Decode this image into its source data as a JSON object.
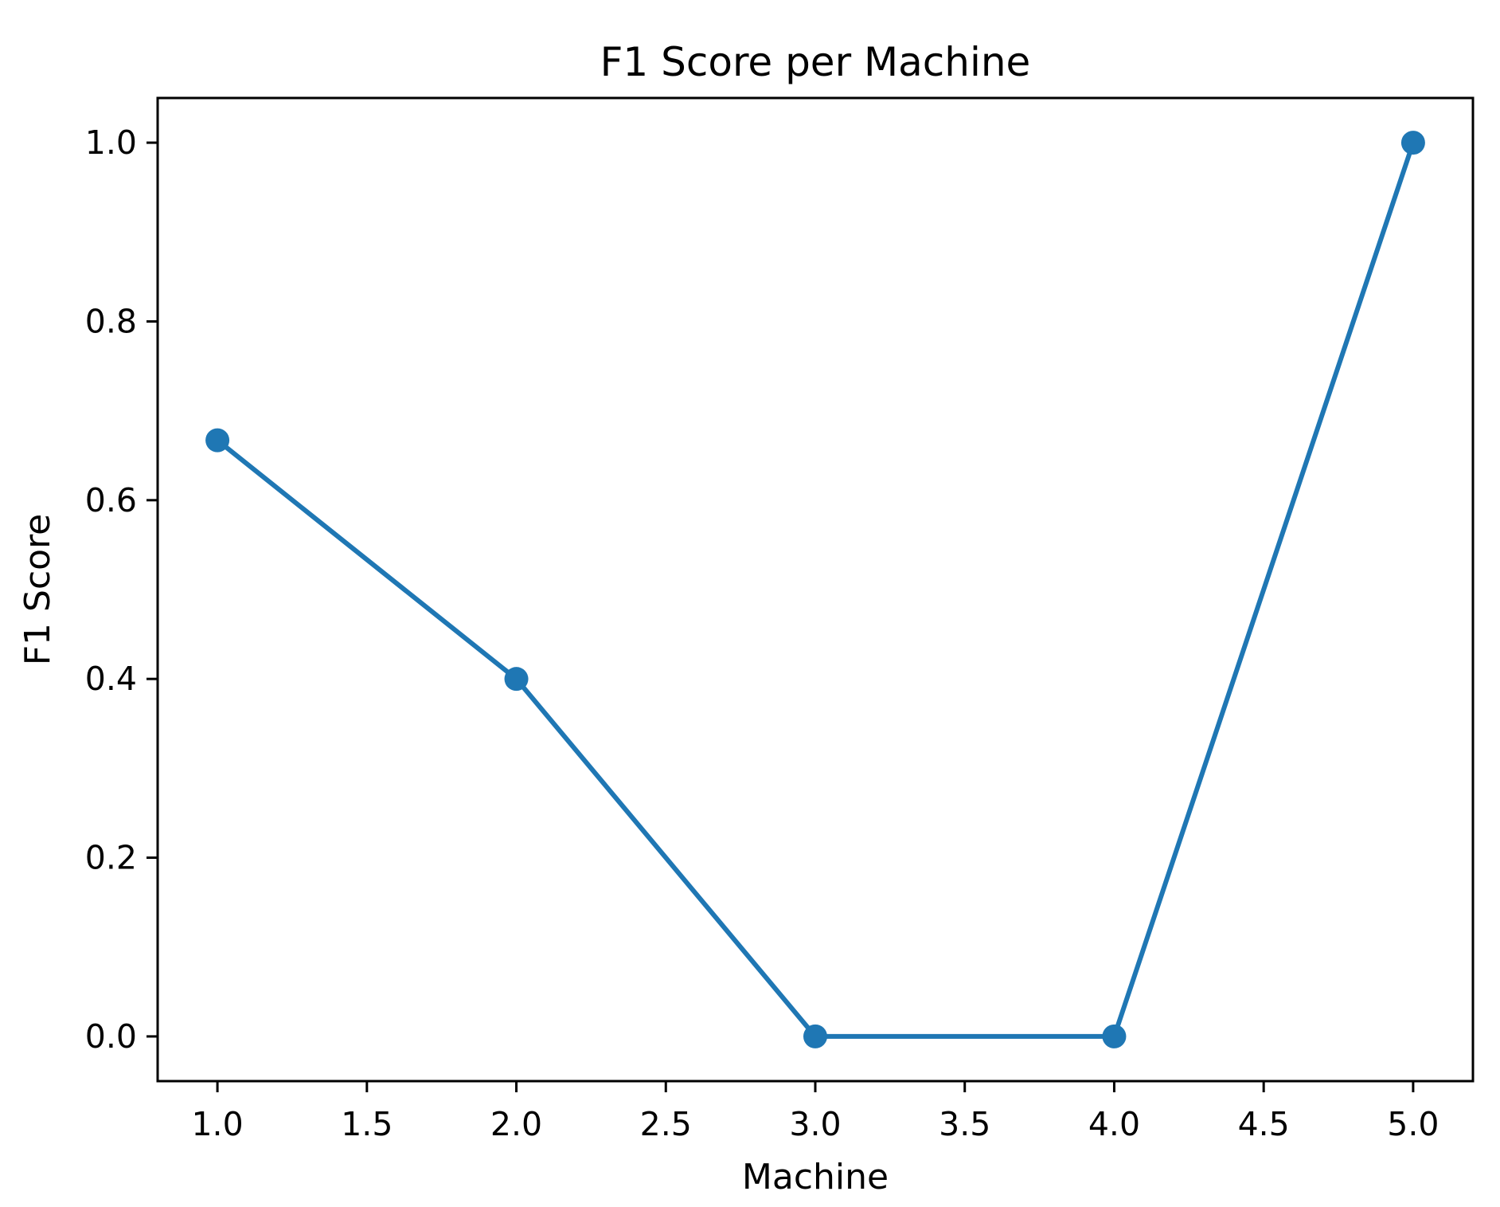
{
  "chart_data": {
    "type": "line",
    "title": "F1 Score per Machine",
    "xlabel": "Machine",
    "ylabel": "F1 Score",
    "x": [
      1,
      2,
      3,
      4,
      5
    ],
    "y": [
      0.667,
      0.4,
      0.0,
      0.0,
      1.0
    ],
    "xlim": [
      0.8,
      5.2
    ],
    "ylim": [
      -0.05,
      1.05
    ],
    "x_ticks": [
      1.0,
      1.5,
      2.0,
      2.5,
      3.0,
      3.5,
      4.0,
      4.5,
      5.0
    ],
    "x_tick_labels": [
      "1.0",
      "1.5",
      "2.0",
      "2.5",
      "3.0",
      "3.5",
      "4.0",
      "4.5",
      "5.0"
    ],
    "y_ticks": [
      0.0,
      0.2,
      0.4,
      0.6,
      0.8,
      1.0
    ],
    "y_tick_labels": [
      "0.0",
      "0.2",
      "0.4",
      "0.6",
      "0.8",
      "1.0"
    ],
    "grid": false,
    "legend_position": "none",
    "line_color": "#1f77b4",
    "marker": "circle",
    "marker_color": "#1f77b4",
    "marker_radius": 15,
    "line_width": 6,
    "axis_color": "#000000",
    "background_color": "#ffffff"
  }
}
